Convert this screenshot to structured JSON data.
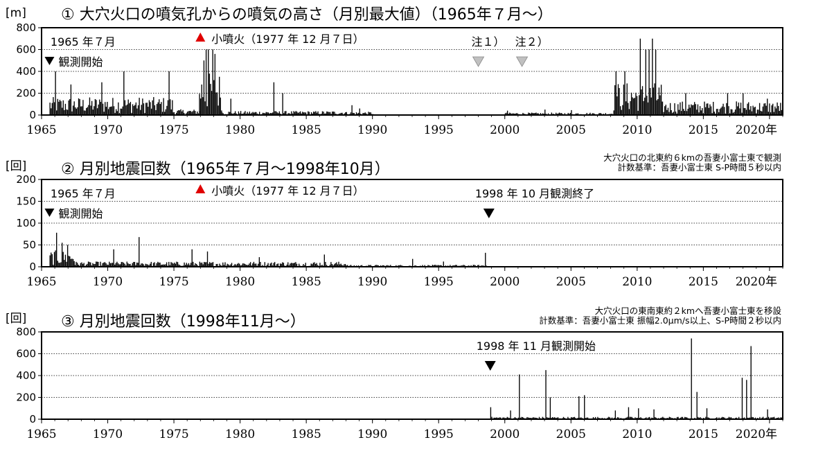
{
  "figure": {
    "background": "#ffffff",
    "bar_color": "#000000",
    "eruption_marker_color": "#e00000",
    "note_marker_color": "#c0c0c0"
  },
  "chart_data": [
    {
      "type": "bar",
      "title": "① 大穴火口の噴気孔からの噴気の高さ（月別最大値）（1965年７月～）",
      "ylabel": "[m]",
      "xlim": [
        1965,
        2021
      ],
      "ylim": [
        0,
        800
      ],
      "yticks": [
        "0",
        "200",
        "400",
        "600",
        "800"
      ],
      "xticks": [
        "1965",
        "1970",
        "1975",
        "1980",
        "1985",
        "1990",
        "1995",
        "2000",
        "2005",
        "2010",
        "2015",
        "2020年"
      ],
      "grid": "horizontal dotted",
      "annotations": [
        {
          "text": "1965 年７月",
          "at": 1966.2
        },
        {
          "text": "観測開始",
          "at": 1965.6,
          "marker": "black-down-triangle"
        },
        {
          "text": "小噴火（1977 年 12 月７日）",
          "at": 1977.0,
          "marker": "red-up-triangle"
        },
        {
          "text": "注１）",
          "at": 1998.0,
          "marker": "gray-down-triangle"
        },
        {
          "text": "注２）",
          "at": 2001.3,
          "marker": "gray-down-triangle"
        }
      ],
      "segments": [
        {
          "from": 1965.6,
          "to": 1974.9,
          "base": 110,
          "peaks": [
            [
              1966.0,
              400
            ],
            [
              1967.2,
              280
            ],
            [
              1969.5,
              300
            ],
            [
              1971.2,
              400
            ],
            [
              1974.6,
              400
            ]
          ]
        },
        {
          "from": 1974.9,
          "to": 1976.9,
          "base": 35,
          "peaks": []
        },
        {
          "from": 1976.9,
          "to": 1978.6,
          "base": 260,
          "peaks": [
            [
              1977.2,
              500
            ],
            [
              1977.4,
              600
            ],
            [
              1977.6,
              600
            ],
            [
              1977.9,
              600
            ],
            [
              1978.1,
              560
            ]
          ]
        },
        {
          "from": 1978.6,
          "to": 1988.0,
          "base": 25,
          "peaks": [
            [
              1982.5,
              300
            ],
            [
              1983.2,
              200
            ],
            [
              1979.3,
              150
            ]
          ]
        },
        {
          "from": 1988.0,
          "to": 1990.0,
          "base": 20,
          "peaks": [
            [
              1988.4,
              90
            ],
            [
              1989.0,
              60
            ]
          ]
        },
        {
          "from": 2000.0,
          "to": 2008.2,
          "base": 15,
          "peaks": [
            [
              2000.2,
              40
            ],
            [
              2003.0,
              50
            ],
            [
              2005.0,
              45
            ]
          ]
        },
        {
          "from": 2008.2,
          "to": 2011.8,
          "base": 200,
          "peaks": [
            [
              2008.4,
              400
            ],
            [
              2009.0,
              400
            ],
            [
              2010.2,
              700
            ],
            [
              2010.6,
              600
            ],
            [
              2011.1,
              700
            ],
            [
              2011.4,
              600
            ],
            [
              2010.9,
              600
            ]
          ]
        },
        {
          "from": 2011.8,
          "to": 2021.0,
          "base": 85,
          "peaks": [
            [
              2013.6,
              200
            ],
            [
              2016.8,
              200
            ],
            [
              2018.0,
              200
            ],
            [
              2019.8,
              150
            ]
          ]
        }
      ]
    },
    {
      "type": "bar",
      "title": "② 月別地震回数（1965年７月～1998年10月）",
      "ylabel": "[回]",
      "notes": [
        "大穴火口の北東約６kmの吾妻小富士東で観測",
        "計数基準：吾妻小富士東 S-P時間５秒以内"
      ],
      "xlim": [
        1965,
        2021
      ],
      "ylim": [
        0,
        200
      ],
      "yticks": [
        "0",
        "50",
        "100",
        "150",
        "200"
      ],
      "xticks": [
        "1965",
        "1970",
        "1975",
        "1980",
        "1985",
        "1990",
        "1995",
        "2000",
        "2005",
        "2010",
        "2015",
        "2020年"
      ],
      "grid": "horizontal dotted",
      "annotations": [
        {
          "text": "1965 年７月",
          "at": 1966.2
        },
        {
          "text": "観測開始",
          "at": 1965.6,
          "marker": "black-down-triangle"
        },
        {
          "text": "小噴火（1977 年 12 月７日）",
          "at": 1977.0,
          "marker": "red-up-triangle"
        },
        {
          "text": "1998 年 10 月観測終了",
          "at": 1998.8,
          "marker": "black-down-triangle"
        }
      ],
      "segments": [
        {
          "from": 1965.6,
          "to": 1967.5,
          "base": 25,
          "peaks": [
            [
              1966.1,
              78
            ],
            [
              1966.5,
              55
            ],
            [
              1966.9,
              50
            ]
          ]
        },
        {
          "from": 1967.5,
          "to": 1988.0,
          "base": 8,
          "peaks": [
            [
              1970.4,
              40
            ],
            [
              1972.3,
              68
            ],
            [
              1976.3,
              40
            ],
            [
              1977.5,
              35
            ],
            [
              1981.4,
              22
            ],
            [
              1986.3,
              28
            ]
          ]
        },
        {
          "from": 1988.0,
          "to": 1998.8,
          "base": 3,
          "peaks": [
            [
              1993.0,
              18
            ],
            [
              1995.3,
              12
            ],
            [
              1998.5,
              32
            ]
          ]
        }
      ]
    },
    {
      "type": "bar",
      "title": "③ 月別地震回数（1998年11月～）",
      "ylabel": "[回]",
      "notes": [
        "大穴火口の東南東約２kmへ吾妻小富士東を移設",
        "計数基準：吾妻小富士東 振幅2.0μm/s以上、S-P時間２秒以内"
      ],
      "xlim": [
        1965,
        2021
      ],
      "ylim": [
        0,
        800
      ],
      "yticks": [
        "0",
        "200",
        "400",
        "600",
        "800"
      ],
      "xticks": [
        "1965",
        "1970",
        "1975",
        "1980",
        "1985",
        "1990",
        "1995",
        "2000",
        "2005",
        "2010",
        "2015",
        "2020年"
      ],
      "grid": "horizontal dotted",
      "annotations": [
        {
          "text": "1998 年 11 月観測開始",
          "at": 1998.9,
          "marker": "black-down-triangle"
        }
      ],
      "segments": [
        {
          "from": 1998.9,
          "to": 2021.0,
          "base": 15,
          "peaks": [
            [
              1998.9,
              110
            ],
            [
              2000.4,
              80
            ],
            [
              2001.1,
              410
            ],
            [
              2003.1,
              450
            ],
            [
              2003.4,
              200
            ],
            [
              2005.6,
              210
            ],
            [
              2006.0,
              220
            ],
            [
              2008.3,
              80
            ],
            [
              2009.3,
              110
            ],
            [
              2010.1,
              100
            ],
            [
              2011.2,
              90
            ],
            [
              2014.1,
              740
            ],
            [
              2014.5,
              250
            ],
            [
              2015.2,
              100
            ],
            [
              2017.9,
              380
            ],
            [
              2018.2,
              360
            ],
            [
              2018.6,
              670
            ],
            [
              2019.8,
              90
            ]
          ]
        }
      ]
    }
  ]
}
